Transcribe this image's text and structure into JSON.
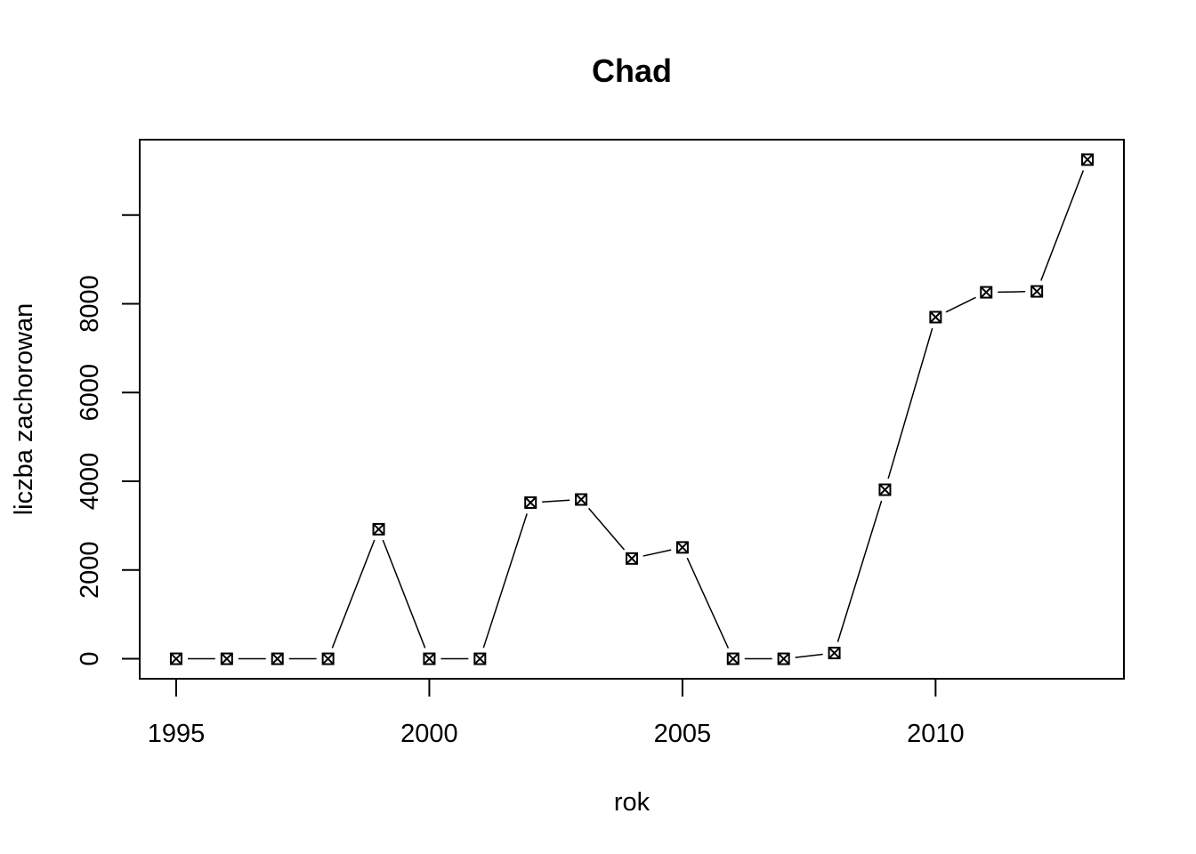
{
  "chart_data": {
    "type": "line",
    "title": "Chad",
    "xlabel": "rok",
    "ylabel": "liczba zachorowan",
    "x_ticks": [
      "1995",
      "2000",
      "2005",
      "2010"
    ],
    "y_ticks": [
      "0",
      "2000",
      "4000",
      "6000",
      "8000"
    ],
    "xlim": [
      1994.28,
      2013.72
    ],
    "ylim": [
      -450,
      11700
    ],
    "marker": "square-with-x",
    "line_style": "lines-with-gaps-at-points",
    "series": [
      {
        "x": [
          1995,
          1996,
          1997,
          1998,
          1999,
          2000,
          2001,
          2002,
          2003,
          2004,
          2005,
          2006,
          2007,
          2008,
          2009,
          2010,
          2011,
          2012,
          2013
        ],
        "values": [
          0,
          0,
          0,
          0,
          2920,
          0,
          0,
          3520,
          3590,
          2260,
          2510,
          0,
          0,
          130,
          3810,
          7700,
          8260,
          8280,
          11250
        ]
      }
    ]
  }
}
